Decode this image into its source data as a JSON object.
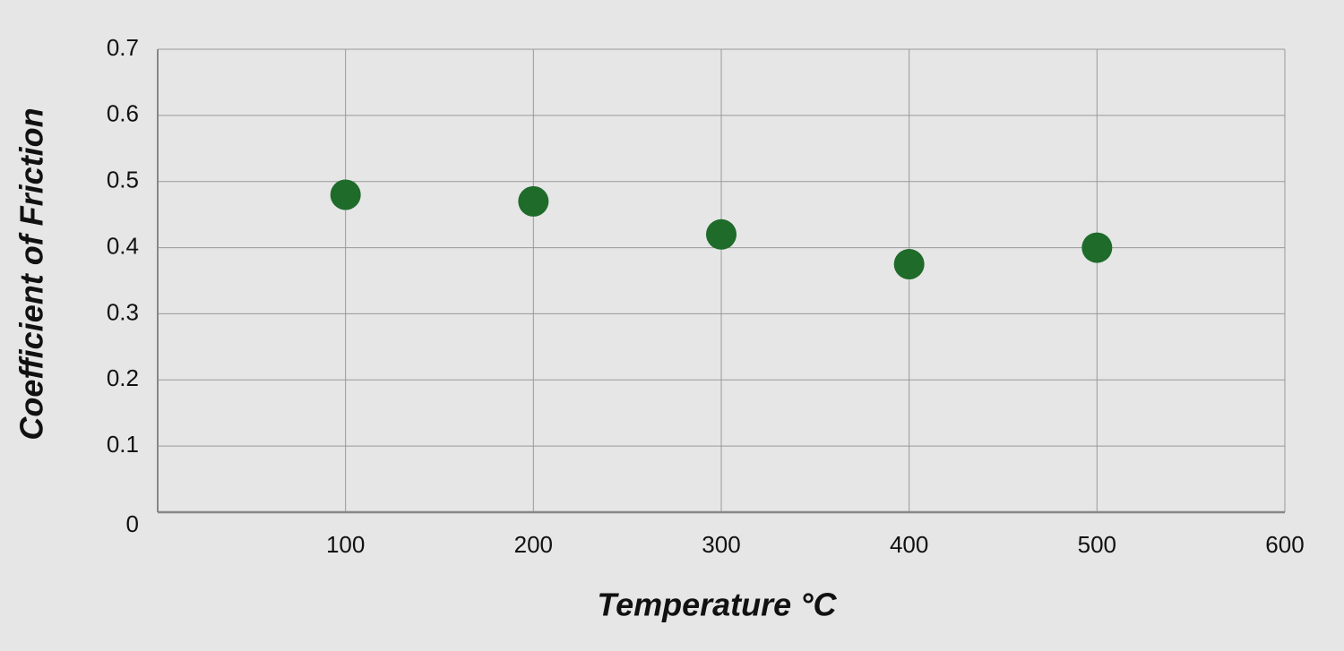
{
  "chart_data": {
    "type": "scatter",
    "x_label": "Temperature °C",
    "y_label": "Coefficient of Friction",
    "x": [
      100,
      200,
      300,
      400,
      500
    ],
    "values": [
      0.48,
      0.47,
      0.42,
      0.375,
      0.4
    ],
    "color": "#1e6b2a",
    "xlim": [
      0,
      600
    ],
    "xticks": [
      100,
      200,
      300,
      400,
      500,
      600
    ],
    "ylim": [
      0,
      0.7
    ],
    "yticks": [
      0,
      0.1,
      0.2,
      0.3,
      0.4,
      0.5,
      0.6,
      0.7
    ],
    "grid": true
  }
}
